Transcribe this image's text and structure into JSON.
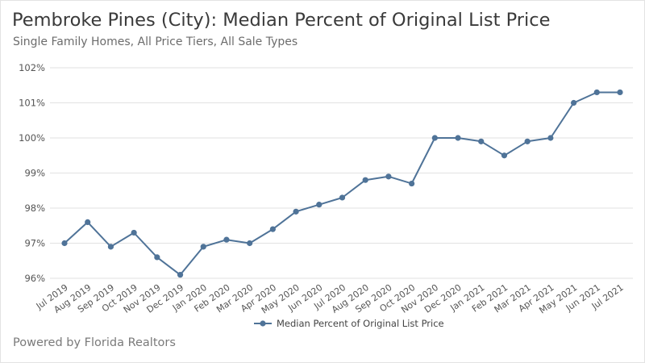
{
  "header": {
    "title": "Pembroke Pines (City): Median Percent of Original List Price",
    "subtitle": "Single Family Homes, All Price Tiers, All Sale Types"
  },
  "footer": {
    "text": "Powered by Florida Realtors"
  },
  "colors": {
    "series": "#4f7398",
    "grid": "#e2e2e2",
    "text": "#555555"
  },
  "chart_data": {
    "type": "line",
    "title": "Pembroke Pines (City): Median Percent of Original List Price",
    "subtitle": "Single Family Homes, All Price Tiers, All Sale Types",
    "xlabel": "",
    "ylabel": "",
    "ylim": [
      96,
      102
    ],
    "yticks": [
      {
        "value": 96,
        "label": "96%"
      },
      {
        "value": 97,
        "label": "97%"
      },
      {
        "value": 98,
        "label": "98%"
      },
      {
        "value": 99,
        "label": "99%"
      },
      {
        "value": 100,
        "label": "100%"
      },
      {
        "value": 101,
        "label": "101%"
      },
      {
        "value": 102,
        "label": "102%"
      }
    ],
    "grid": true,
    "legend_position": "bottom",
    "categories": [
      "Jul 2019",
      "Aug 2019",
      "Sep 2019",
      "Oct 2019",
      "Nov 2019",
      "Dec 2019",
      "Jan 2020",
      "Feb 2020",
      "Mar 2020",
      "Apr 2020",
      "May 2020",
      "Jun 2020",
      "Jul 2020",
      "Aug 2020",
      "Sep 2020",
      "Oct 2020",
      "Nov 2020",
      "Dec 2020",
      "Jan 2021",
      "Feb 2021",
      "Mar 2021",
      "Apr 2021",
      "May 2021",
      "Jun 2021",
      "Jul 2021"
    ],
    "series": [
      {
        "name": "Median Percent of Original List Price",
        "values": [
          97.0,
          97.6,
          96.9,
          97.3,
          96.6,
          96.1,
          96.9,
          97.1,
          97.0,
          97.4,
          97.9,
          98.1,
          98.3,
          98.8,
          98.9,
          98.7,
          100.0,
          100.0,
          99.9,
          99.5,
          99.9,
          100.0,
          101.0,
          101.3,
          101.3
        ]
      }
    ]
  }
}
